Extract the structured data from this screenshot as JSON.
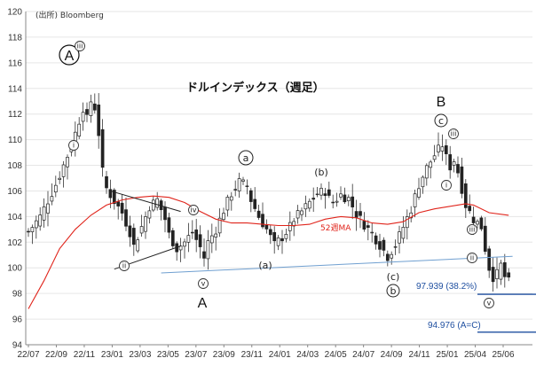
{
  "chart_data": {
    "type": "candlestick",
    "source": "(出所) Bloomberg",
    "title": "ドルインデックス（週足）",
    "ylim": [
      94,
      120
    ],
    "y_ticks": [
      94,
      96,
      98,
      100,
      102,
      104,
      106,
      108,
      110,
      112,
      114,
      116,
      118,
      120
    ],
    "x_ticks": [
      "22/07",
      "22/09",
      "22/11",
      "23/01",
      "23/03",
      "23/05",
      "23/07",
      "23/09",
      "23/11",
      "24/01",
      "24/03",
      "24/05",
      "24/07",
      "24/09",
      "24/11",
      "25/01",
      "25/04",
      "25/06"
    ],
    "price_path": [
      [
        0,
        102.8
      ],
      [
        3,
        104.0
      ],
      [
        7,
        106.5
      ],
      [
        11,
        109.5
      ],
      [
        13,
        111.5
      ],
      [
        14,
        112.5
      ],
      [
        15,
        111.6
      ],
      [
        16,
        113.0
      ],
      [
        17,
        112.5
      ],
      [
        18,
        110.5
      ],
      [
        19,
        107.5
      ],
      [
        20,
        106.2
      ],
      [
        22,
        105.2
      ],
      [
        24,
        104.3
      ],
      [
        26,
        102.8
      ],
      [
        27,
        101.7
      ],
      [
        29,
        103.2
      ],
      [
        31,
        104.8
      ],
      [
        33,
        105.3
      ],
      [
        35,
        103.8
      ],
      [
        36,
        102.6
      ],
      [
        38,
        101.5
      ],
      [
        40,
        102.0
      ],
      [
        42,
        102.8
      ],
      [
        44,
        101.6
      ],
      [
        45,
        100.8
      ],
      [
        46,
        102.0
      ],
      [
        48,
        103.0
      ],
      [
        50,
        104.5
      ],
      [
        52,
        105.8
      ],
      [
        54,
        106.7
      ],
      [
        56,
        106.4
      ],
      [
        57,
        105.3
      ],
      [
        59,
        104.0
      ],
      [
        61,
        103.0
      ],
      [
        63,
        101.8
      ],
      [
        65,
        102.4
      ],
      [
        67,
        103.2
      ],
      [
        68,
        103.8
      ],
      [
        70,
        104.4
      ],
      [
        72,
        105.1
      ],
      [
        74,
        105.8
      ],
      [
        76,
        106.0
      ],
      [
        77,
        105.4
      ],
      [
        78,
        105.1
      ],
      [
        80,
        105.7
      ],
      [
        82,
        105.4
      ],
      [
        84,
        104.2
      ],
      [
        86,
        103.4
      ],
      [
        88,
        102.7
      ],
      [
        90,
        101.8
      ],
      [
        92,
        100.9
      ],
      [
        94,
        101.8
      ],
      [
        96,
        103.2
      ],
      [
        98,
        104.6
      ],
      [
        100,
        106.5
      ],
      [
        102,
        107.8
      ],
      [
        104,
        108.8
      ],
      [
        106,
        109.6
      ],
      [
        107,
        108.6
      ],
      [
        108,
        107.9
      ],
      [
        109,
        108.4
      ],
      [
        110,
        107.5
      ],
      [
        112,
        104.9
      ],
      [
        114,
        103.8
      ],
      [
        116,
        103.2
      ],
      [
        117,
        101.5
      ],
      [
        118,
        100.0
      ],
      [
        119,
        99.3
      ],
      [
        120,
        99.5
      ],
      [
        121,
        100.2
      ],
      [
        122,
        99.3
      ],
      [
        123,
        98.9
      ]
    ],
    "series": [
      {
        "name": "52週MA",
        "color": "#e0241b",
        "points": [
          [
            0,
            96.8
          ],
          [
            4,
            99.0
          ],
          [
            8,
            101.5
          ],
          [
            12,
            103.0
          ],
          [
            16,
            104.1
          ],
          [
            20,
            104.9
          ],
          [
            24,
            105.3
          ],
          [
            28,
            105.5
          ],
          [
            32,
            105.6
          ],
          [
            36,
            105.5
          ],
          [
            40,
            105.1
          ],
          [
            44,
            104.4
          ],
          [
            48,
            103.8
          ],
          [
            52,
            103.5
          ],
          [
            56,
            103.5
          ],
          [
            60,
            103.4
          ],
          [
            64,
            103.3
          ],
          [
            68,
            103.3
          ],
          [
            72,
            103.4
          ],
          [
            76,
            103.8
          ],
          [
            80,
            104.0
          ],
          [
            84,
            103.9
          ],
          [
            88,
            103.5
          ],
          [
            92,
            103.4
          ],
          [
            96,
            103.6
          ],
          [
            100,
            104.3
          ],
          [
            104,
            104.6
          ],
          [
            108,
            104.8
          ],
          [
            112,
            105.0
          ],
          [
            114,
            104.9
          ],
          [
            118,
            104.3
          ],
          [
            123,
            104.1
          ]
        ]
      }
    ],
    "lines": [
      {
        "name": "support",
        "color": "#6f9fd0",
        "points": [
          [
            34,
            99.6
          ],
          [
            124,
            100.9
          ]
        ]
      },
      {
        "name": "triangle-upper",
        "color": "#222222",
        "points": [
          [
            21,
            106.0
          ],
          [
            39,
            104.4
          ]
        ]
      },
      {
        "name": "triangle-lower",
        "color": "#222222",
        "points": [
          [
            22,
            99.9
          ],
          [
            39,
            101.7
          ]
        ]
      },
      {
        "name": "fib-382",
        "color": "#1f4fa0",
        "points": [
          [
            115,
            97.94
          ],
          [
            131,
            97.94
          ]
        ]
      },
      {
        "name": "fib-ac",
        "color": "#1f4fa0",
        "points": [
          [
            115,
            94.98
          ],
          [
            131,
            94.98
          ]
        ]
      }
    ],
    "labels": {
      "circled_A": "A",
      "A": "A",
      "B": "B",
      "a": "a",
      "b": "(b)",
      "paren_a": "(a)",
      "paren_c": "(c)",
      "ma": "52週MA",
      "fib382": "97.939 (38.2%)",
      "fib_ac": "94.976 (A=C)"
    },
    "circled_roman": [
      "iii",
      "i",
      "iv",
      "ii",
      "iii",
      "v",
      "i",
      "iii",
      "ii",
      "v"
    ]
  }
}
